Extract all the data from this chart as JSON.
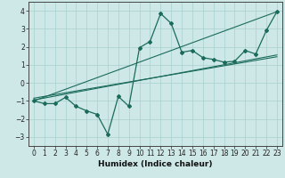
{
  "xlabel": "Humidex (Indice chaleur)",
  "background_color": "#cee8e8",
  "grid_color": "#a8d0cc",
  "line_color": "#1a6b5a",
  "xlim": [
    -0.5,
    23.5
  ],
  "ylim": [
    -3.5,
    4.5
  ],
  "xticks": [
    0,
    1,
    2,
    3,
    4,
    5,
    6,
    7,
    8,
    9,
    10,
    11,
    12,
    13,
    14,
    15,
    16,
    17,
    18,
    19,
    20,
    21,
    22,
    23
  ],
  "yticks": [
    -3,
    -2,
    -1,
    0,
    1,
    2,
    3,
    4
  ],
  "data_line": {
    "x": [
      0,
      1,
      2,
      3,
      4,
      5,
      6,
      7,
      8,
      9,
      10,
      11,
      12,
      13,
      14,
      15,
      16,
      17,
      18,
      19,
      20,
      21,
      22,
      23
    ],
    "y": [
      -1.0,
      -1.15,
      -1.15,
      -0.8,
      -1.3,
      -1.55,
      -1.75,
      -2.85,
      -0.75,
      -1.3,
      1.95,
      2.3,
      3.85,
      3.3,
      1.7,
      1.8,
      1.4,
      1.3,
      1.15,
      1.2,
      1.8,
      1.6,
      2.9,
      3.95
    ]
  },
  "trend_lines": [
    {
      "x": [
        0,
        23
      ],
      "y": [
        -1.0,
        3.95
      ]
    },
    {
      "x": [
        0,
        23
      ],
      "y": [
        -0.95,
        1.55
      ]
    },
    {
      "x": [
        0,
        23
      ],
      "y": [
        -0.85,
        1.45
      ]
    }
  ]
}
